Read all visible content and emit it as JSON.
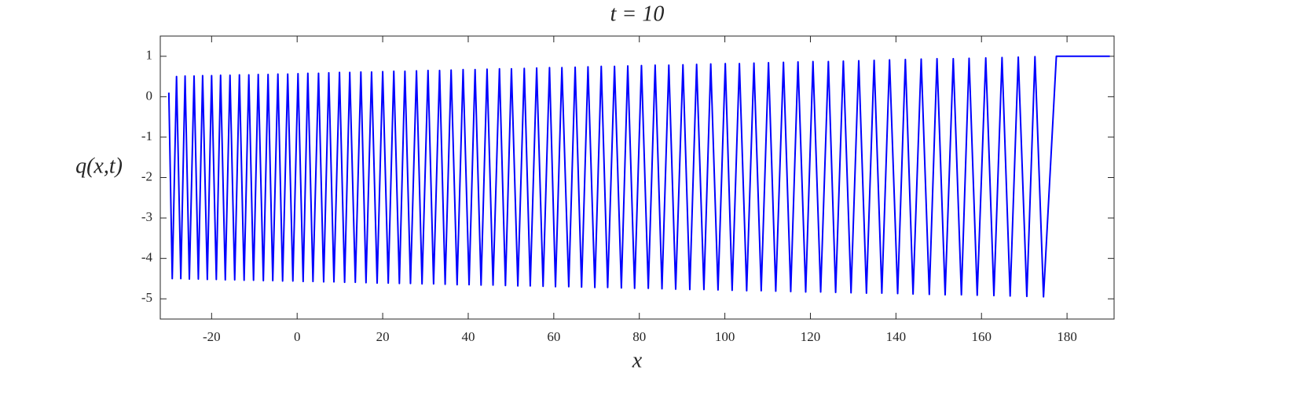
{
  "chart_data": {
    "type": "line",
    "title": "t = 10",
    "x_label": "x",
    "y_label": "q(x,t)",
    "xlim": [
      -32,
      191
    ],
    "ylim": [
      -5.5,
      1.5
    ],
    "xticks": [
      -20,
      0,
      20,
      40,
      60,
      80,
      100,
      120,
      140,
      160,
      180
    ],
    "yticks": [
      1,
      0,
      -1,
      -2,
      -3,
      -4,
      -5
    ],
    "series": [
      {
        "color": "#0000ff",
        "x": [
          -30,
          -29.2,
          -28.2,
          -27.2,
          -26.2,
          -25.2,
          -24.1,
          -23.1,
          -22.1,
          -21.0,
          -20.0,
          -18.9,
          -17.9,
          -16.8,
          -15.7,
          -14.6,
          -13.5,
          -12.4,
          -11.3,
          -10.2,
          -9.1,
          -7.9,
          -6.8,
          -5.7,
          -4.5,
          -3.4,
          -2.2,
          -1.0,
          0.2,
          1.4,
          2.5,
          3.7,
          5.0,
          6.2,
          7.4,
          8.6,
          9.9,
          11.1,
          12.3,
          13.6,
          14.9,
          16.1,
          17.4,
          18.7,
          20.0,
          21.3,
          22.6,
          23.9,
          25.2,
          26.5,
          27.9,
          29.2,
          30.6,
          31.9,
          33.3,
          34.6,
          36.0,
          37.4,
          38.8,
          40.2,
          41.6,
          43.0,
          44.4,
          45.8,
          47.3,
          48.7,
          50.1,
          51.6,
          53.1,
          54.5,
          56.0,
          57.5,
          59.0,
          60.4,
          61.9,
          63.5,
          65.0,
          66.5,
          68.0,
          69.6,
          71.1,
          72.6,
          74.2,
          75.8,
          77.3,
          78.9,
          80.5,
          82.1,
          83.7,
          85.3,
          86.9,
          88.5,
          90.2,
          91.8,
          93.4,
          95.1,
          96.7,
          98.4,
          100.1,
          101.7,
          103.4,
          105.1,
          106.8,
          108.5,
          110.2,
          111.9,
          113.7,
          115.4,
          117.1,
          118.9,
          120.6,
          122.4,
          124.2,
          125.9,
          127.7,
          129.5,
          131.3,
          133.1,
          134.9,
          136.7,
          138.5,
          140.4,
          142.2,
          144.0,
          145.9,
          147.8,
          149.6,
          151.5,
          153.4,
          155.3,
          157.1,
          159.0,
          161.0,
          162.9,
          164.8,
          166.7,
          168.6,
          170.6,
          172.5,
          174.5,
          177.5,
          190
        ],
        "values": [
          0.1,
          -4.5,
          0.5,
          -4.5,
          0.51,
          -4.51,
          0.51,
          -4.51,
          0.52,
          -4.52,
          0.52,
          -4.52,
          0.53,
          -4.53,
          0.53,
          -4.53,
          0.54,
          -4.54,
          0.54,
          -4.54,
          0.55,
          -4.55,
          0.55,
          -4.55,
          0.56,
          -4.56,
          0.56,
          -4.56,
          0.57,
          -4.57,
          0.58,
          -4.57,
          0.58,
          -4.58,
          0.59,
          -4.58,
          0.6,
          -4.59,
          0.6,
          -4.59,
          0.61,
          -4.6,
          0.61,
          -4.61,
          0.62,
          -4.61,
          0.63,
          -4.62,
          0.63,
          -4.62,
          0.64,
          -4.63,
          0.65,
          -4.63,
          0.65,
          -4.64,
          0.66,
          -4.65,
          0.67,
          -4.65,
          0.67,
          -4.66,
          0.68,
          -4.66,
          0.69,
          -4.67,
          0.69,
          -4.68,
          0.7,
          -4.68,
          0.71,
          -4.69,
          0.72,
          -4.7,
          0.72,
          -4.7,
          0.73,
          -4.71,
          0.74,
          -4.72,
          0.75,
          -4.72,
          0.75,
          -4.73,
          0.76,
          -4.74,
          0.77,
          -4.74,
          0.78,
          -4.75,
          0.78,
          -4.76,
          0.79,
          -4.77,
          0.8,
          -4.77,
          0.81,
          -4.78,
          0.82,
          -4.79,
          0.82,
          -4.8,
          0.83,
          -4.8,
          0.84,
          -4.81,
          0.85,
          -4.82,
          0.86,
          -4.83,
          0.87,
          -4.83,
          0.87,
          -4.84,
          0.88,
          -4.85,
          0.89,
          -4.86,
          0.9,
          -4.86,
          0.91,
          -4.87,
          0.92,
          -4.88,
          0.93,
          -4.89,
          0.94,
          -4.9,
          0.94,
          -4.9,
          0.95,
          -4.91,
          0.96,
          -4.92,
          0.97,
          -4.93,
          0.98,
          -4.94,
          0.99,
          -4.95,
          1.0,
          1.0
        ]
      }
    ]
  }
}
